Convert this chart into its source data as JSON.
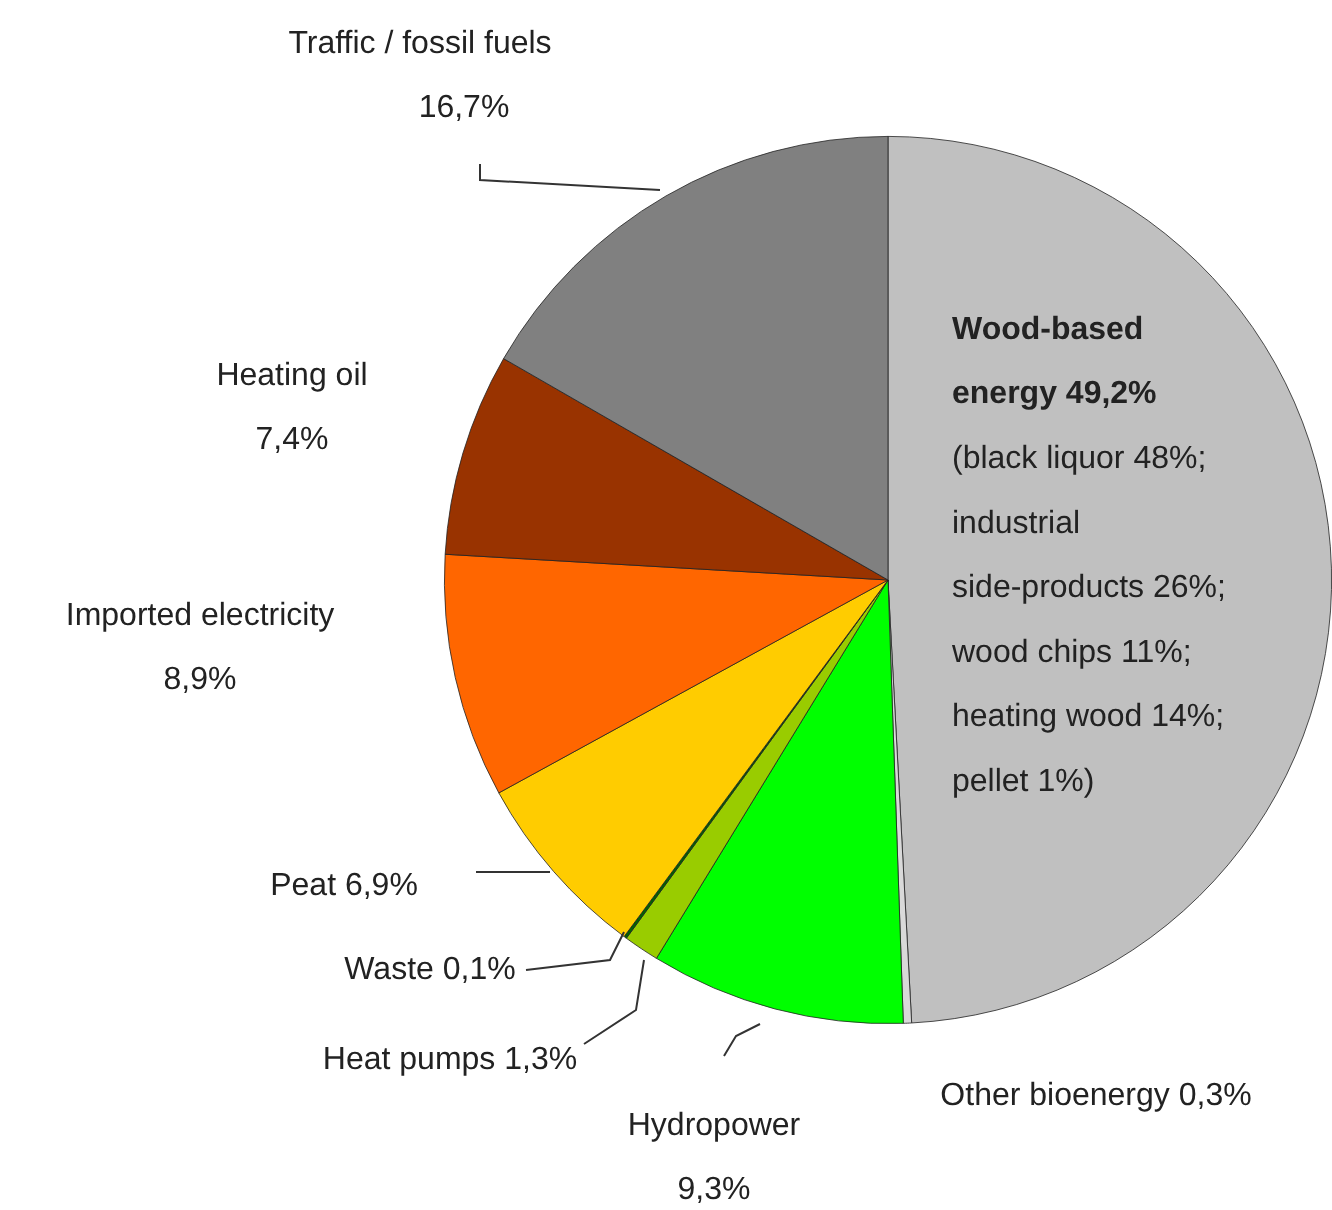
{
  "chart_data": {
    "type": "pie",
    "categories": [
      "Wood-based energy",
      "Other bioenergy",
      "Hydropower",
      "Heat pumps",
      "Waste",
      "Peat",
      "Imported electricity",
      "Heating oil",
      "Traffic / fossil fuels"
    ],
    "values": [
      49.2,
      0.3,
      9.3,
      1.3,
      0.1,
      6.9,
      8.9,
      7.4,
      16.7
    ],
    "colors": [
      "#c0c0c0",
      "#d9d9d9",
      "#00ff00",
      "#99cc00",
      "#006600",
      "#ffcc00",
      "#ff6600",
      "#993300",
      "#808080"
    ],
    "value_labels": [
      "49,2%",
      "0,3%",
      "9,3%",
      "1,3%",
      "0,1%",
      "6,9%",
      "8,9%",
      "7,4%",
      "16,7%"
    ],
    "annotations": [
      "(black liquor 48%; industrial side-products 26%; wood chips 11%; heating wood 14%; pellet 1%)"
    ],
    "legend": false
  }
}
